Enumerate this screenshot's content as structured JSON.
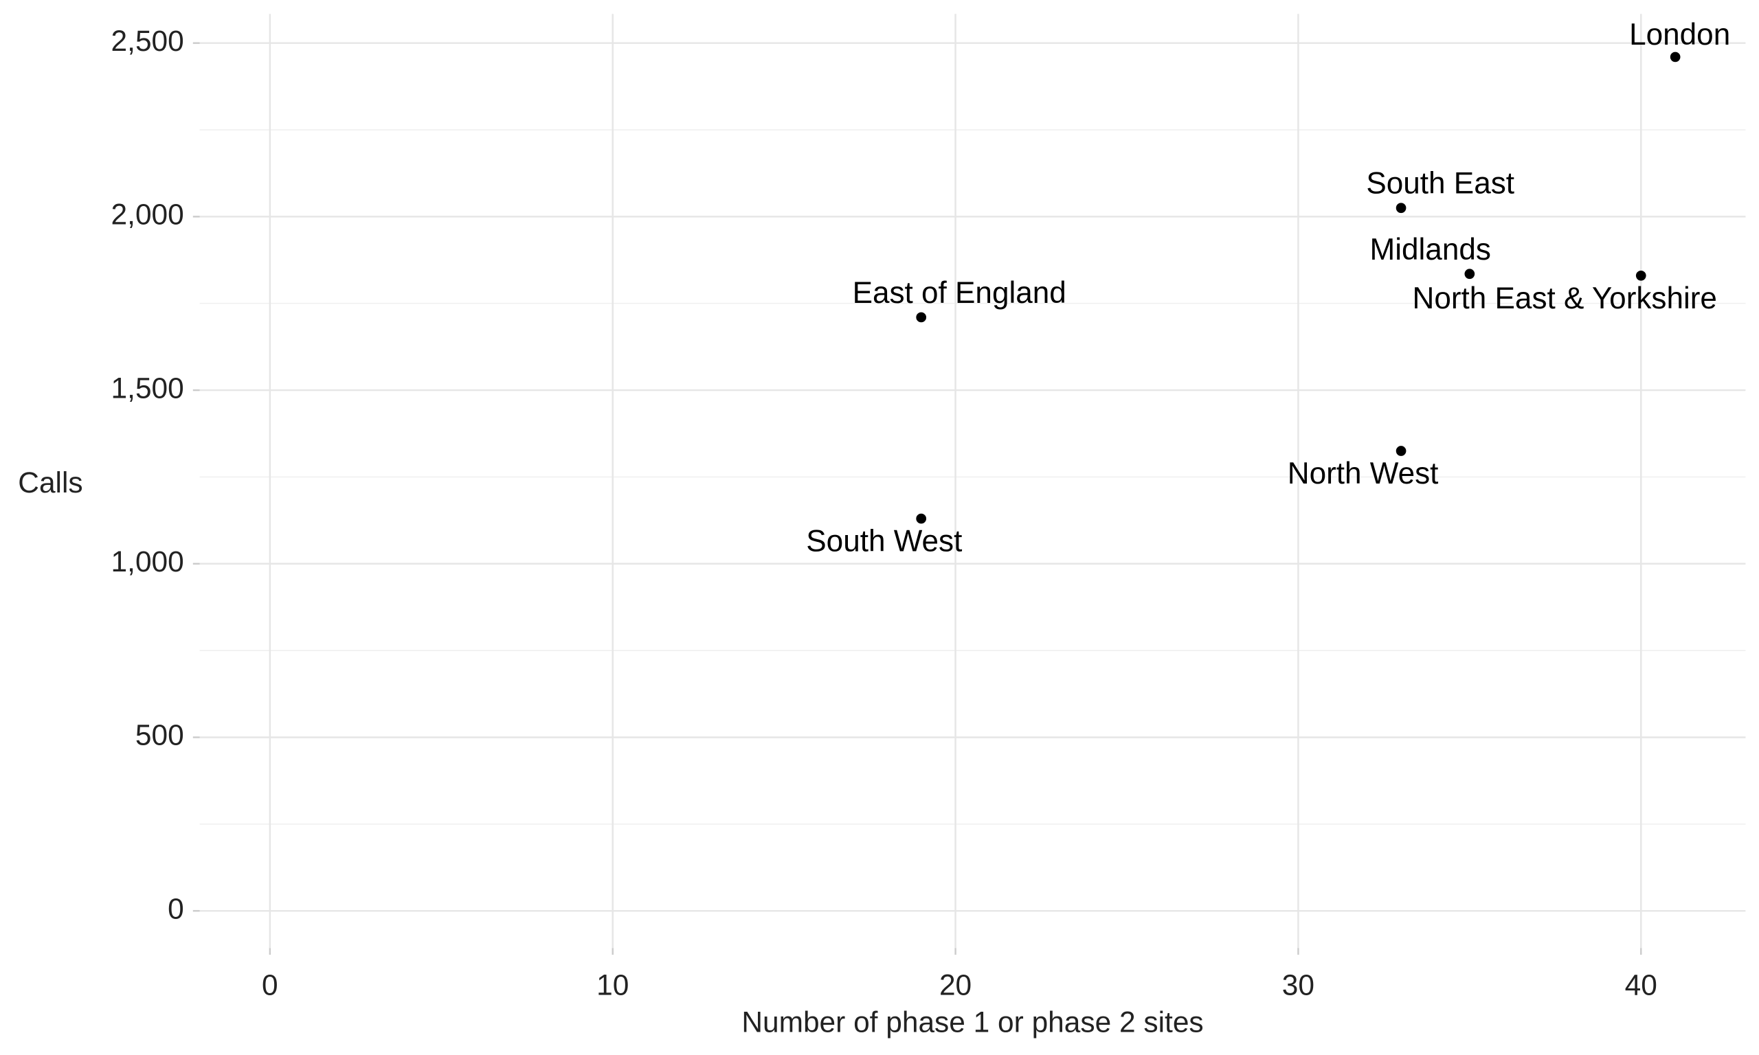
{
  "chart_data": {
    "type": "scatter",
    "x_label": "Number of phase 1 or phase 2 sites",
    "y_label": "Calls",
    "labels": [
      "London",
      "South East",
      "Midlands",
      "North East & Yorkshire",
      "East of England",
      "North West",
      "South West"
    ],
    "x": [
      41,
      33,
      35,
      40,
      19,
      33,
      19
    ],
    "y": [
      2460,
      2025,
      1835,
      1830,
      1710,
      1325,
      1130
    ],
    "color": "#000000",
    "xlim": [
      -2.05,
      43.05
    ],
    "ylim": [
      -107,
      2584
    ],
    "xticks": [
      0,
      10,
      20,
      30,
      40
    ],
    "yticks": [
      0,
      500,
      {
        "value": 1000,
        "label": "1,000"
      },
      {
        "value": 1500,
        "label": "1,500"
      },
      {
        "value": 2000,
        "label": "2,000"
      },
      {
        "value": 2500,
        "label": "2,500"
      }
    ],
    "grid": true
  }
}
